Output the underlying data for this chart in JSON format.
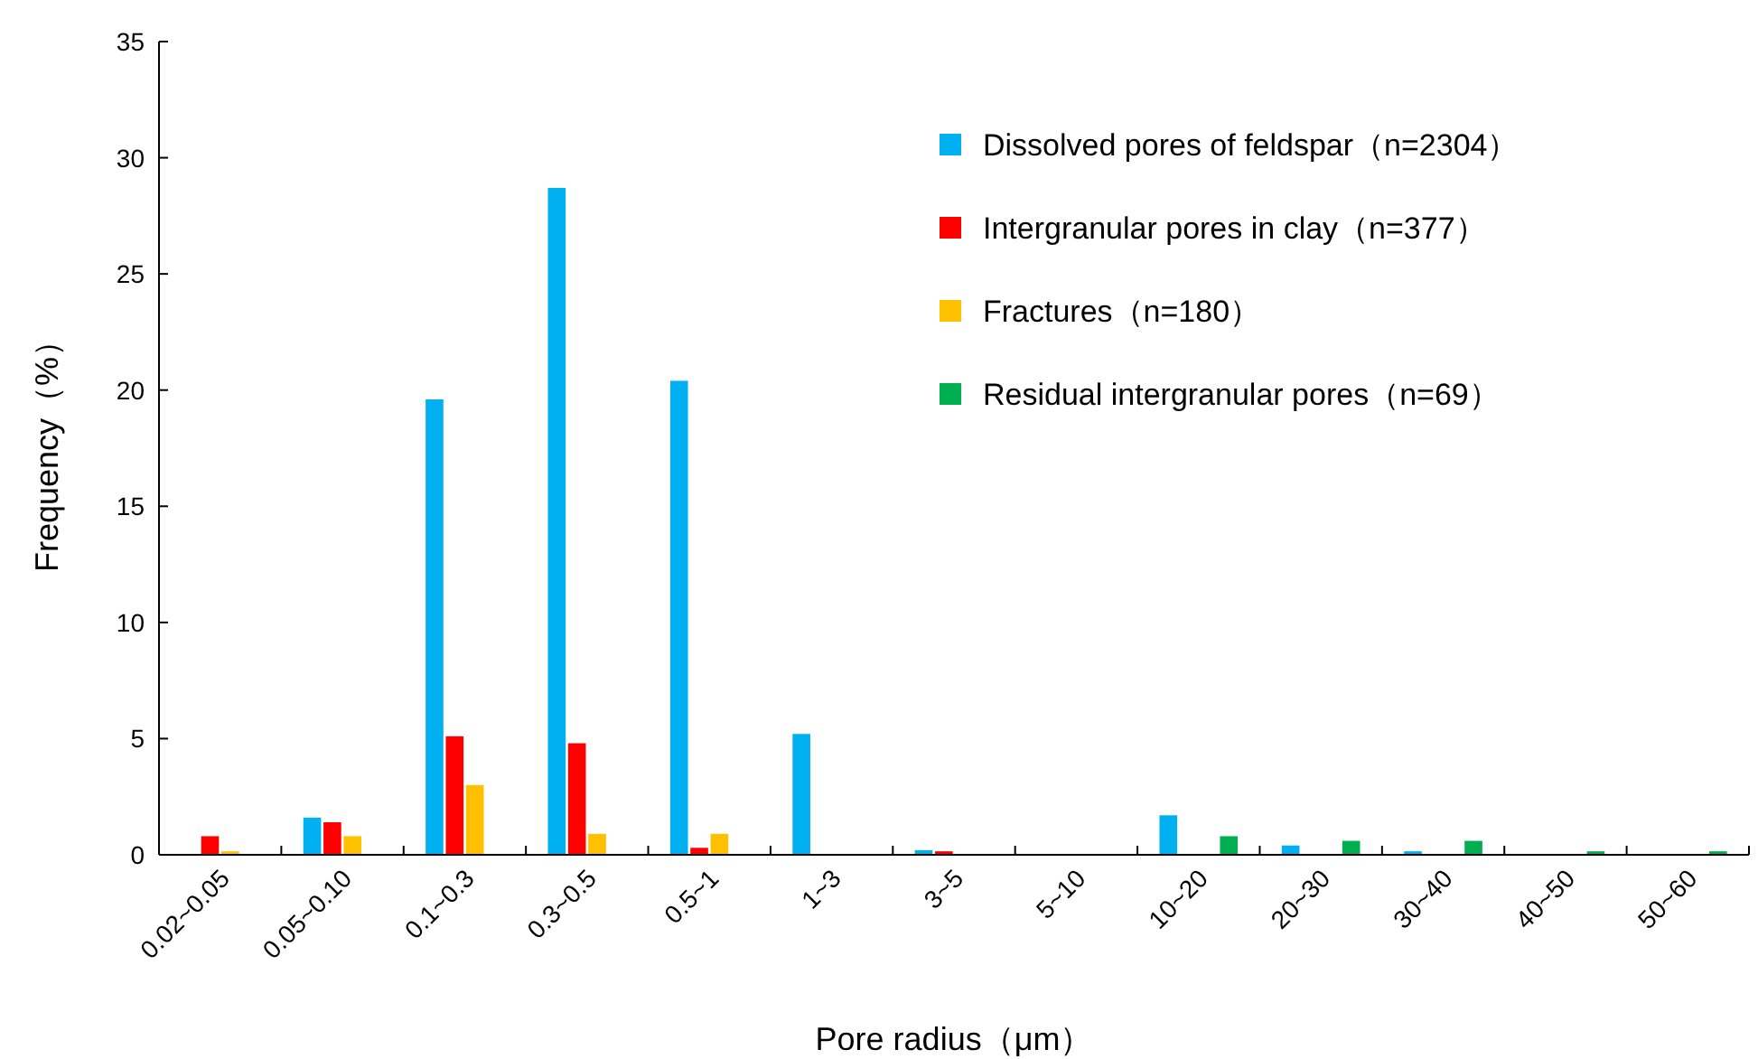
{
  "chart_data": {
    "type": "bar",
    "xlabel": "Pore radius（μm）",
    "ylabel": "Frequency（%）",
    "categories": [
      "0.02~0.05",
      "0.05~0.10",
      "0.1~0.3",
      "0.3~0.5",
      "0.5~1",
      "1~3",
      "3~5",
      "5~10",
      "10~20",
      "20~30",
      "30~40",
      "40~50",
      "50~60"
    ],
    "series": [
      {
        "name": "Dissolved pores of feldspar（n=2304）",
        "color": "#00b0f0",
        "values": [
          0,
          1.6,
          19.6,
          28.7,
          20.4,
          5.2,
          0.2,
          0,
          1.7,
          0.4,
          0.15,
          0,
          0
        ]
      },
      {
        "name": "Intergranular pores in clay（n=377）",
        "color": "#ff0000",
        "values": [
          0.8,
          1.4,
          5.1,
          4.8,
          0.3,
          0,
          0.15,
          0,
          0,
          0,
          0,
          0,
          0
        ]
      },
      {
        "name": "Fractures（n=180）",
        "color": "#ffc000",
        "values": [
          0.15,
          0.8,
          3.0,
          0.9,
          0.9,
          0,
          0,
          0,
          0,
          0,
          0,
          0,
          0
        ]
      },
      {
        "name": "Residual intergranular pores（n=69）",
        "color": "#00b050",
        "values": [
          0,
          0,
          0,
          0,
          0,
          0,
          0,
          0,
          0.8,
          0.6,
          0.6,
          0.15,
          0.15
        ]
      }
    ],
    "ylim": [
      0,
      35
    ],
    "yticks": [
      0,
      5,
      10,
      15,
      20,
      25,
      30,
      35
    ],
    "grid": false,
    "legend": "top right"
  }
}
